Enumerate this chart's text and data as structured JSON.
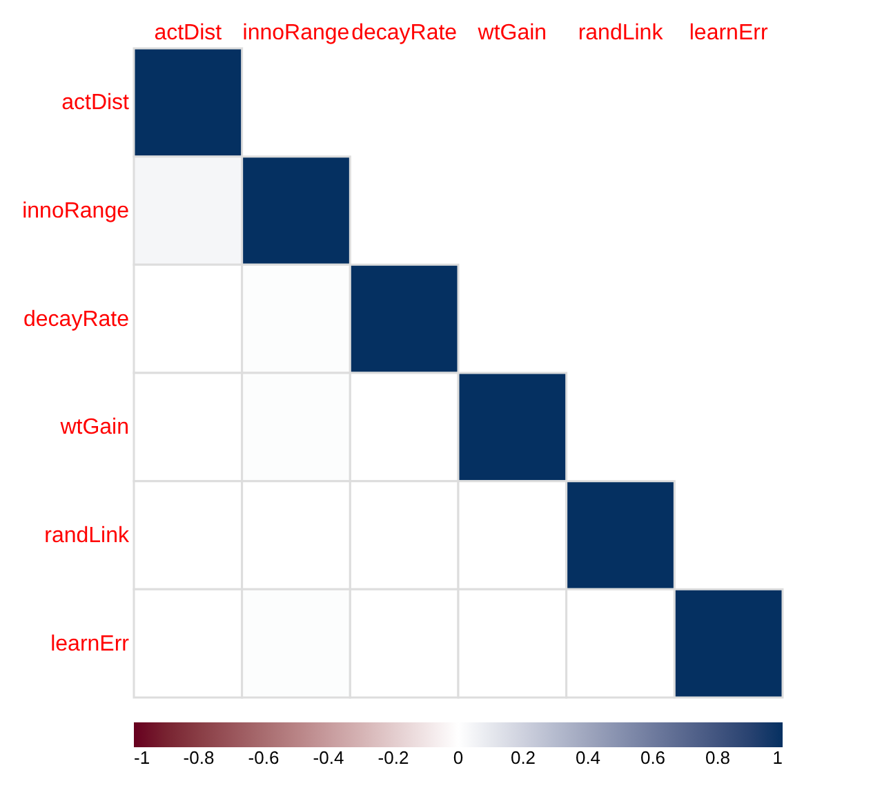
{
  "chart_data": {
    "type": "heatmap",
    "categories": [
      "actDist",
      "innoRange",
      "decayRate",
      "wtGain",
      "randLink",
      "learnErr"
    ],
    "y_categories": [
      "actDist",
      "innoRange",
      "decayRate",
      "wtGain",
      "randLink",
      "learnErr"
    ],
    "cells": [
      [
        1,
        null,
        null,
        null,
        null,
        null
      ],
      [
        0.04,
        1,
        null,
        null,
        null,
        null
      ],
      [
        0,
        0.01,
        1,
        null,
        null,
        null
      ],
      [
        0,
        0.01,
        0,
        1,
        null,
        null
      ],
      [
        0,
        0,
        0,
        0,
        1,
        null
      ],
      [
        0,
        0.01,
        0,
        0,
        0,
        1
      ]
    ],
    "clim": [
      -1,
      1
    ],
    "cticks": [
      -1,
      -0.8,
      -0.6,
      -0.4,
      -0.2,
      0,
      0.2,
      0.4,
      0.6,
      0.8,
      1
    ]
  }
}
